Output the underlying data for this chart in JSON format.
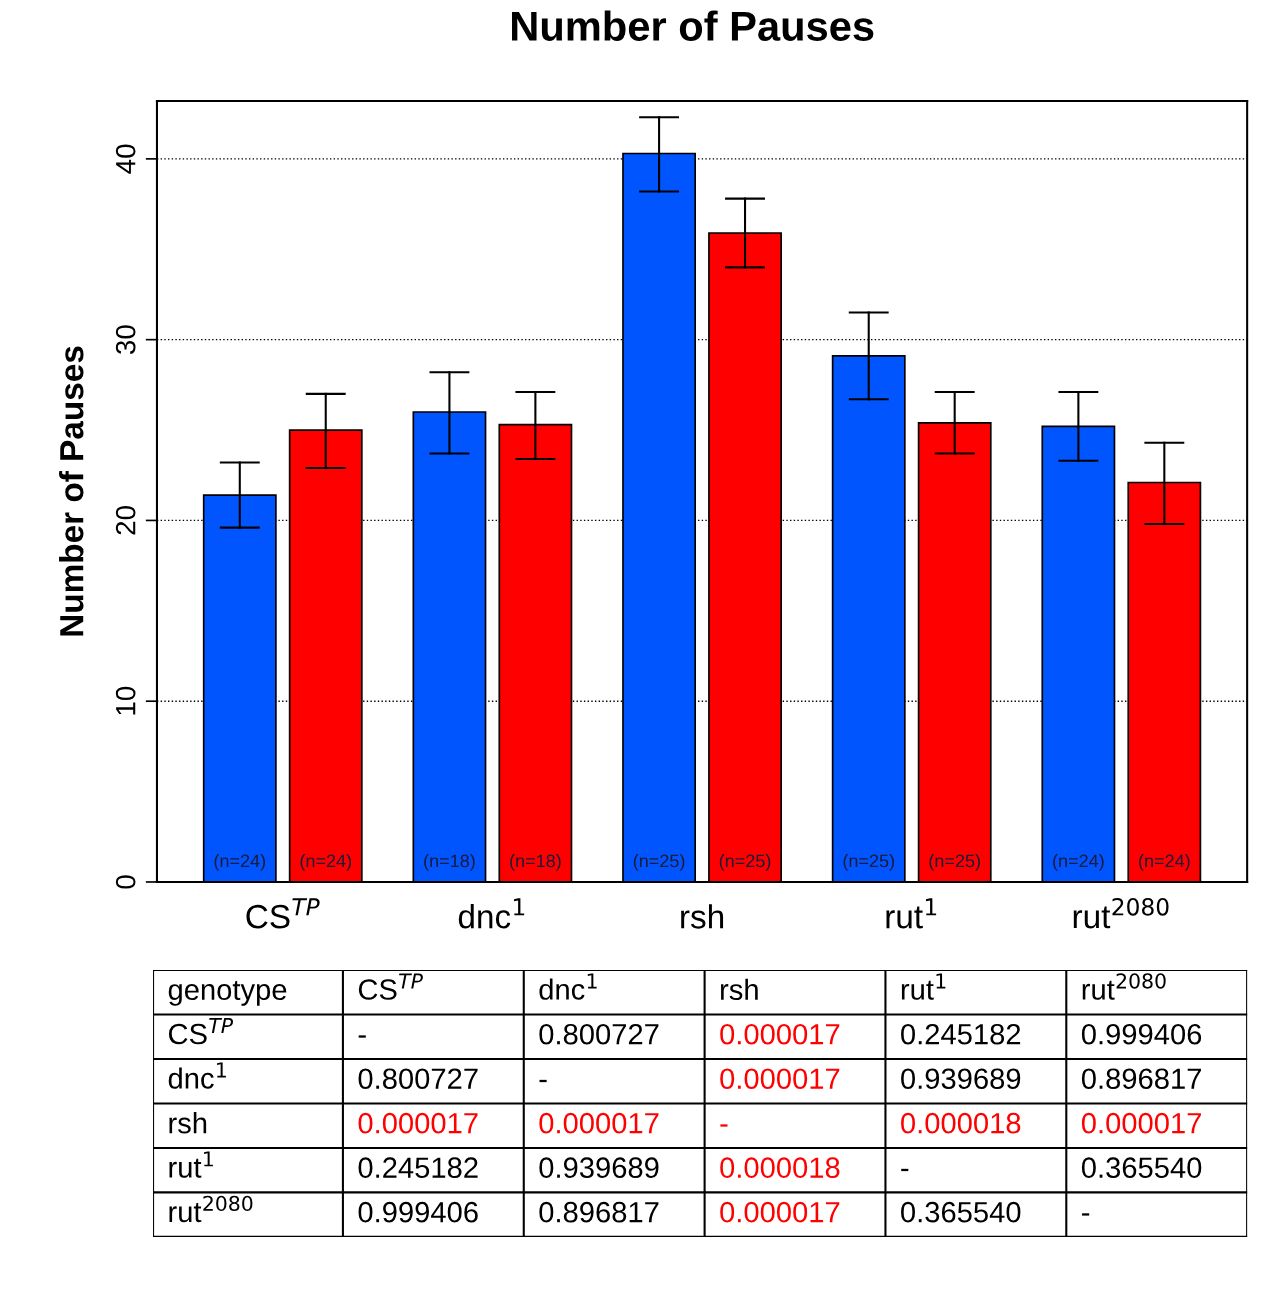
{
  "chart_data": [
    {
      "type": "bar",
      "title": "Number of Pauses",
      "ylabel": "Number of Pauses",
      "categories": [
        "CS$^{TP}$",
        "dnc$^{1}$",
        "rsh",
        "rut$^{1}$",
        "rut$^{2080}$"
      ],
      "series": [
        {
          "color": "#0055ff",
          "values": [
            21.4,
            26.0,
            40.3,
            29.1,
            25.2
          ],
          "errors": [
            [
              19.6,
              23.2
            ],
            [
              23.7,
              28.2
            ],
            [
              38.2,
              42.3
            ],
            [
              26.7,
              31.5
            ],
            [
              23.3,
              27.1
            ]
          ]
        },
        {
          "color": "#ff0000",
          "values": [
            25.0,
            25.3,
            35.9,
            25.4,
            22.1
          ],
          "errors": [
            [
              22.9,
              27.0
            ],
            [
              23.4,
              27.1
            ],
            [
              34.0,
              37.8
            ],
            [
              23.7,
              27.1
            ],
            [
              19.8,
              24.3
            ]
          ]
        }
      ],
      "annotations": [
        "(n=24)",
        "(n=24)",
        "(n=18)",
        "(n=18)",
        "(n=25)",
        "(n=25)",
        "(n=25)",
        "(n=25)",
        "(n=24)",
        "(n=24)"
      ],
      "ylim": [
        0,
        43.2
      ],
      "yticks": [
        0,
        10,
        20,
        30,
        40
      ],
      "grid": "y"
    },
    {
      "type": "other",
      "ylabel": "genotype",
      "categories": [
        "CS$^{TP}$",
        "dnc$^{1}$",
        "rsh",
        "rut$^{1}$",
        "rut$^{2080}$"
      ],
      "y_categories": [
        "CS$^{TP}$",
        "dnc$^{1}$",
        "rsh",
        "rut$^{1}$",
        "rut$^{2080}$"
      ],
      "cell_labels": [
        [
          "-",
          "0.800727",
          "0.000017",
          "0.245182",
          "0.999406"
        ],
        [
          "0.800727",
          "-",
          "0.000017",
          "0.939689",
          "0.896817"
        ],
        [
          "0.000017",
          "0.000017",
          "-",
          "0.000018",
          "0.000017"
        ],
        [
          "0.245182",
          "0.939689",
          "0.000018",
          "-",
          "0.365540"
        ],
        [
          "0.999406",
          "0.896817",
          "0.000017",
          "0.365540",
          "-"
        ]
      ],
      "colors": [
        [
          "#000000",
          "#000000",
          "#ff0000",
          "#000000",
          "#000000"
        ],
        [
          "#000000",
          "#000000",
          "#ff0000",
          "#000000",
          "#000000"
        ],
        [
          "#ff0000",
          "#ff0000",
          "#ff0000",
          "#ff0000",
          "#ff0000"
        ],
        [
          "#000000",
          "#000000",
          "#ff0000",
          "#000000",
          "#000000"
        ],
        [
          "#000000",
          "#000000",
          "#ff0000",
          "#000000",
          "#000000"
        ]
      ]
    }
  ]
}
